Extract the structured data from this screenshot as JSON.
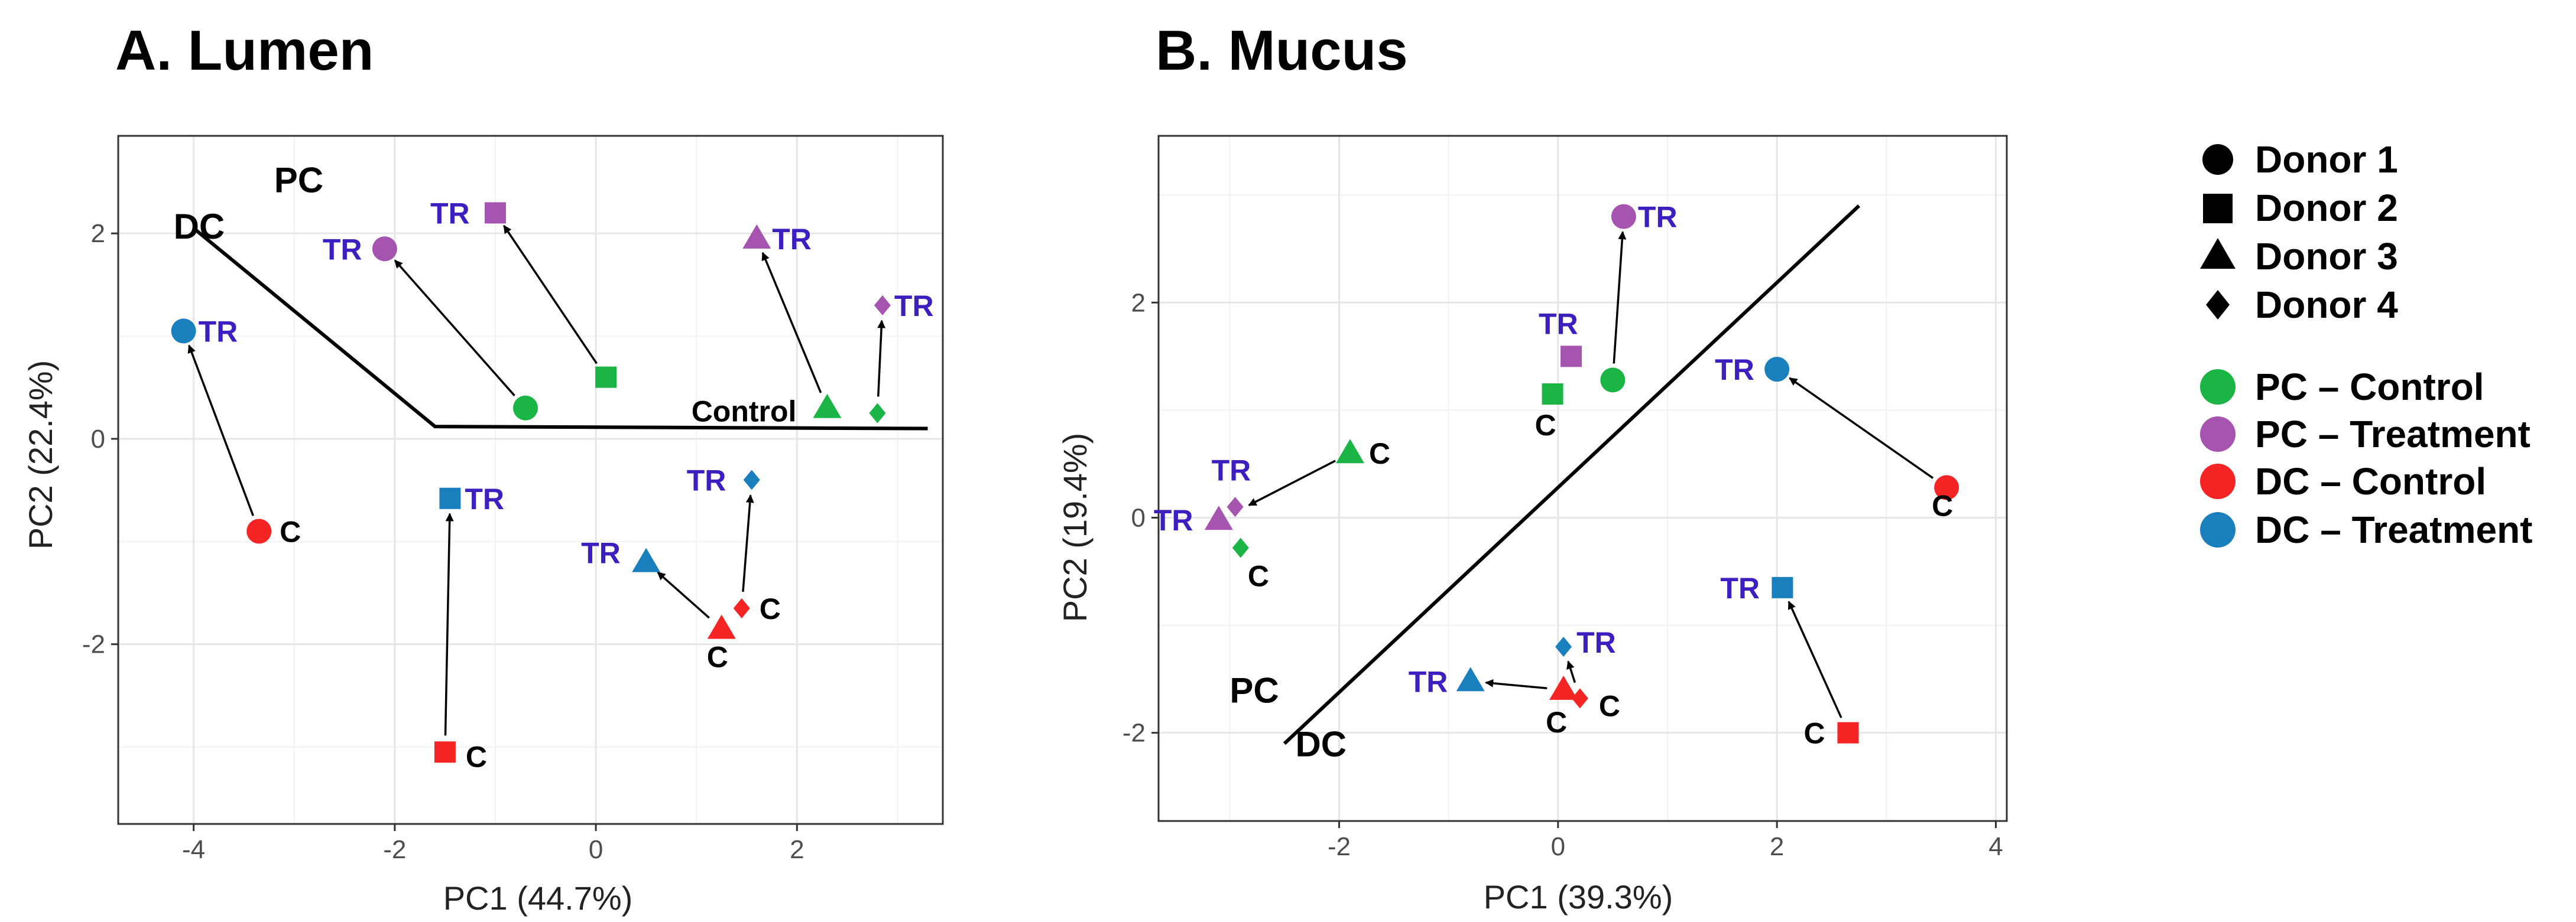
{
  "chart_data": [
    {
      "type": "scatter",
      "panel": "A",
      "title": "A. Lumen",
      "xlabel": "PC1 (44.7%)",
      "ylabel": "PC2 (22.4%)",
      "xlim": [
        -4.75,
        3.45
      ],
      "ylim": [
        -3.75,
        2.95
      ],
      "xticks": [
        -4,
        -2,
        0,
        2
      ],
      "yticks": [
        -2,
        0,
        2
      ],
      "grid": true,
      "divider_line": [
        [
          -4,
          2.05
        ],
        [
          -1.6,
          0.12
        ],
        [
          3.3,
          0.1
        ]
      ],
      "region_labels": [
        {
          "text": "PC",
          "x": -3.2,
          "y": 2.4
        },
        {
          "text": "DC",
          "x": -4.2,
          "y": 1.95
        },
        {
          "text": "Control",
          "x": 0.95,
          "y": 0.17
        }
      ],
      "points": [
        {
          "group": "PC – Control",
          "donor": 1,
          "x": -0.7,
          "y": 0.3
        },
        {
          "group": "PC – Control",
          "donor": 2,
          "x": 0.1,
          "y": 0.6
        },
        {
          "group": "PC – Control",
          "donor": 3,
          "x": 2.3,
          "y": 0.3
        },
        {
          "group": "PC – Control",
          "donor": 4,
          "x": 2.8,
          "y": 0.25
        },
        {
          "group": "PC – Treatment",
          "donor": 1,
          "x": -2.1,
          "y": 1.85,
          "label": "TR"
        },
        {
          "group": "PC – Treatment",
          "donor": 2,
          "x": -1.0,
          "y": 2.2,
          "label": "TR"
        },
        {
          "group": "PC – Treatment",
          "donor": 3,
          "x": 1.6,
          "y": 1.95,
          "label": "TR"
        },
        {
          "group": "PC – Treatment",
          "donor": 4,
          "x": 2.85,
          "y": 1.3,
          "label": "TR"
        },
        {
          "group": "DC – Control",
          "donor": 1,
          "x": -3.35,
          "y": -0.9,
          "label": "C"
        },
        {
          "group": "DC – Control",
          "donor": 2,
          "x": -1.5,
          "y": -3.05,
          "label": "C"
        },
        {
          "group": "DC – Control",
          "donor": 3,
          "x": 1.25,
          "y": -1.85,
          "label": "C"
        },
        {
          "group": "DC – Control",
          "donor": 4,
          "x": 1.45,
          "y": -1.65,
          "label": "C"
        },
        {
          "group": "DC – Treatment",
          "donor": 1,
          "x": -4.1,
          "y": 1.05,
          "label": "TR"
        },
        {
          "group": "DC – Treatment",
          "donor": 2,
          "x": -1.45,
          "y": -0.58,
          "label": "TR"
        },
        {
          "group": "DC – Treatment",
          "donor": 3,
          "x": 0.5,
          "y": -1.2,
          "label": "TR"
        },
        {
          "group": "DC – Treatment",
          "donor": 4,
          "x": 1.55,
          "y": -0.4,
          "label": "TR"
        }
      ],
      "arrows": [
        {
          "from": [
            -0.7,
            0.3
          ],
          "to": [
            -2.1,
            1.85
          ]
        },
        {
          "from": [
            0.1,
            0.6
          ],
          "to": [
            -1.0,
            2.2
          ]
        },
        {
          "from": [
            2.3,
            0.3
          ],
          "to": [
            1.6,
            1.95
          ]
        },
        {
          "from": [
            2.8,
            0.25
          ],
          "to": [
            2.85,
            1.3
          ]
        },
        {
          "from": [
            -3.35,
            -0.9
          ],
          "to": [
            -4.1,
            1.05
          ]
        },
        {
          "from": [
            -1.5,
            -3.05
          ],
          "to": [
            -1.45,
            -0.58
          ]
        },
        {
          "from": [
            1.25,
            -1.85
          ],
          "to": [
            0.5,
            -1.2
          ]
        },
        {
          "from": [
            1.45,
            -1.65
          ],
          "to": [
            1.55,
            -0.4
          ]
        }
      ]
    },
    {
      "type": "scatter",
      "panel": "B",
      "title": "B. Mucus",
      "xlabel": "PC1 (39.3%)",
      "ylabel": "PC2 (19.4%)",
      "xlim": [
        -3.65,
        4.1
      ],
      "ylim": [
        -2.82,
        3.55
      ],
      "xticks": [
        -2,
        0,
        2,
        4
      ],
      "yticks": [
        -2,
        0,
        2
      ],
      "grid": true,
      "divider_line": [
        [
          -2.5,
          -2.1
        ],
        [
          2.75,
          2.9
        ]
      ],
      "region_labels": [
        {
          "text": "PC",
          "x": -3.0,
          "y": -1.72
        },
        {
          "text": "DC",
          "x": -2.4,
          "y": -2.22
        }
      ],
      "points": [
        {
          "group": "PC – Control",
          "donor": 1,
          "x": 0.5,
          "y": 1.28
        },
        {
          "group": "PC – Control",
          "donor": 2,
          "x": -0.05,
          "y": 1.15,
          "label": "C"
        },
        {
          "group": "PC – Control",
          "donor": 3,
          "x": -1.9,
          "y": 0.6,
          "label": "C"
        },
        {
          "group": "PC – Control",
          "donor": 4,
          "x": -2.9,
          "y": -0.28,
          "label": "C"
        },
        {
          "group": "PC – Treatment",
          "donor": 1,
          "x": 0.6,
          "y": 2.8,
          "label": "TR"
        },
        {
          "group": "PC – Treatment",
          "donor": 2,
          "x": 0.12,
          "y": 1.5,
          "label": "TR"
        },
        {
          "group": "PC – Treatment",
          "donor": 3,
          "x": -3.1,
          "y": -0.02,
          "label": "TR"
        },
        {
          "group": "PC – Treatment",
          "donor": 4,
          "x": -2.95,
          "y": 0.1,
          "label": "TR"
        },
        {
          "group": "DC – Control",
          "donor": 1,
          "x": 3.55,
          "y": 0.28,
          "label": "C"
        },
        {
          "group": "DC – Control",
          "donor": 2,
          "x": 2.65,
          "y": -2.0,
          "label": "C"
        },
        {
          "group": "DC – Control",
          "donor": 3,
          "x": 0.05,
          "y": -1.6,
          "label": "C"
        },
        {
          "group": "DC – Control",
          "donor": 4,
          "x": 0.2,
          "y": -1.68,
          "label": "C"
        },
        {
          "group": "DC – Treatment",
          "donor": 1,
          "x": 2.0,
          "y": 1.38,
          "label": "TR"
        },
        {
          "group": "DC – Treatment",
          "donor": 2,
          "x": 2.05,
          "y": -0.65,
          "label": "TR"
        },
        {
          "group": "DC – Treatment",
          "donor": 3,
          "x": -0.8,
          "y": -1.52,
          "label": "TR"
        },
        {
          "group": "DC – Treatment",
          "donor": 4,
          "x": 0.05,
          "y": -1.2,
          "label": "TR"
        }
      ],
      "arrows": [
        {
          "from": [
            0.5,
            1.28
          ],
          "to": [
            0.6,
            2.8
          ]
        },
        {
          "from": [
            -1.9,
            0.6
          ],
          "to": [
            -2.95,
            0.05
          ]
        },
        {
          "from": [
            3.55,
            0.28
          ],
          "to": [
            2.0,
            1.38
          ]
        },
        {
          "from": [
            2.65,
            -2.0
          ],
          "to": [
            2.05,
            -0.65
          ]
        },
        {
          "from": [
            0.05,
            -1.6
          ],
          "to": [
            -0.8,
            -1.52
          ]
        },
        {
          "from": [
            0.2,
            -1.68
          ],
          "to": [
            0.05,
            -1.2
          ]
        }
      ]
    }
  ],
  "legend": {
    "donors": [
      {
        "label": "Donor 1",
        "shape": "circle"
      },
      {
        "label": "Donor 2",
        "shape": "square"
      },
      {
        "label": "Donor 3",
        "shape": "triangle"
      },
      {
        "label": "Donor 4",
        "shape": "diamond"
      }
    ],
    "groups": [
      {
        "label": "PC – Control",
        "color": "#1ab544"
      },
      {
        "label": "PC – Treatment",
        "color": "#a554b0"
      },
      {
        "label": "DC – Control",
        "color": "#f52525"
      },
      {
        "label": "DC – Treatment",
        "color": "#1a7fbd"
      }
    ],
    "donor_symbol_color": "#000000"
  }
}
